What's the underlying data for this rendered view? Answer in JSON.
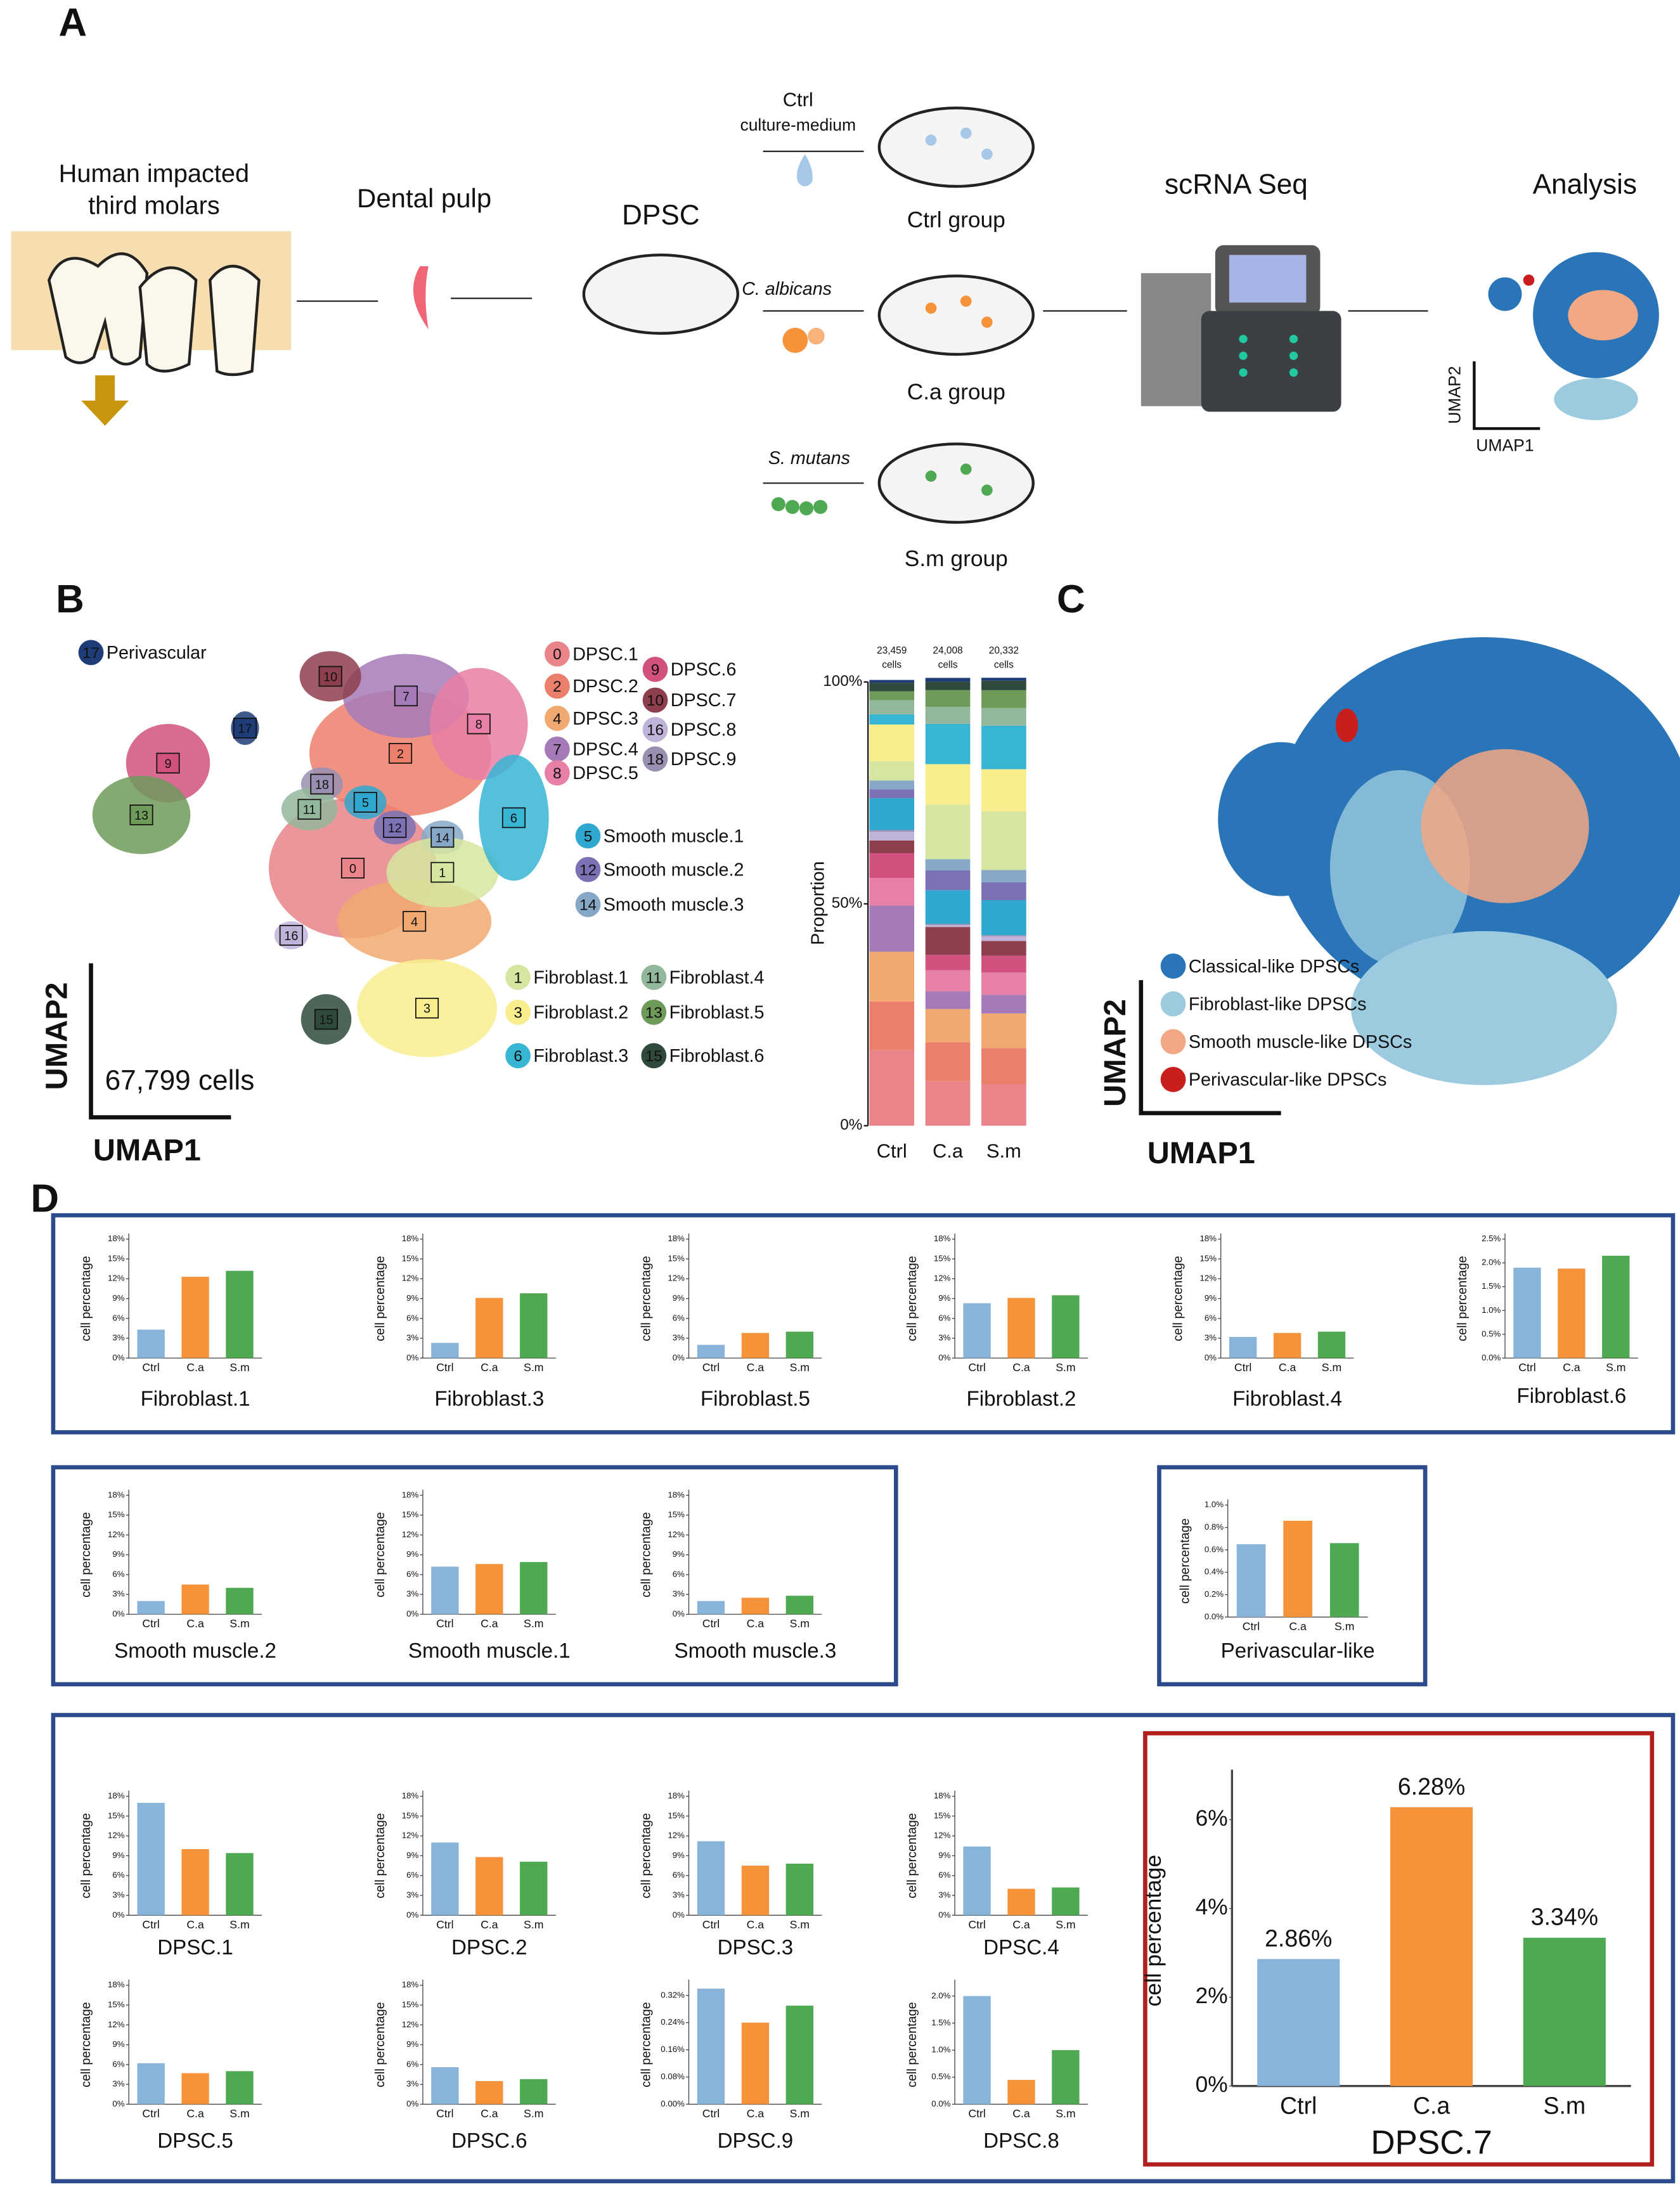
{
  "panel_a": {
    "label": "A",
    "source_line1": "Human impacted",
    "source_line2": "third molars",
    "pulp": "Dental pulp",
    "dpsc": "DPSC",
    "ctrl": "Ctrl",
    "ctrl_medium": "culture-medium",
    "ctrl_group": "Ctrl group",
    "ca": "C. albicans",
    "ca_group": "C.a group",
    "sm": "S. mutans",
    "sm_group": "S.m group",
    "seq": "scRNA Seq",
    "analysis": "Analysis",
    "umap2": "UMAP2",
    "umap1": "UMAP1"
  },
  "panel_b": {
    "label": "B",
    "umap2": "UMAP2",
    "umap1": "UMAP1",
    "cell_total": "67,799 cells",
    "clusters": [
      {
        "num": 0,
        "name": "DPSC.1",
        "color": "#e8848a"
      },
      {
        "num": 2,
        "name": "DPSC.2",
        "color": "#ec7f6b"
      },
      {
        "num": 4,
        "name": "DPSC.3",
        "color": "#f2a970"
      },
      {
        "num": 7,
        "name": "DPSC.4",
        "color": "#a47ab8"
      },
      {
        "num": 8,
        "name": "DPSC.5",
        "color": "#e77fa6"
      },
      {
        "num": 9,
        "name": "DPSC.6",
        "color": "#d1517f"
      },
      {
        "num": 10,
        "name": "DPSC.7",
        "color": "#8e3f4e"
      },
      {
        "num": 16,
        "name": "DPSC.8",
        "color": "#bfb3d9"
      },
      {
        "num": 18,
        "name": "DPSC.9",
        "color": "#9a8fb0"
      },
      {
        "num": 5,
        "name": "Smooth muscle.1",
        "color": "#2fa7cf"
      },
      {
        "num": 12,
        "name": "Smooth muscle.2",
        "color": "#7a72b5"
      },
      {
        "num": 14,
        "name": "Smooth muscle.3",
        "color": "#86a7c6"
      },
      {
        "num": 1,
        "name": "Fibroblast.1",
        "color": "#d6e6a0"
      },
      {
        "num": 3,
        "name": "Fibroblast.2",
        "color": "#f8ee8e"
      },
      {
        "num": 6,
        "name": "Fibroblast.3",
        "color": "#37b5d3"
      },
      {
        "num": 11,
        "name": "Fibroblast.4",
        "color": "#93b79a"
      },
      {
        "num": 13,
        "name": "Fibroblast.5",
        "color": "#6e9a5a"
      },
      {
        "num": 15,
        "name": "Fibroblast.6",
        "color": "#2f4a3c"
      },
      {
        "num": 17,
        "name": "Perivascular",
        "color": "#1e3d78"
      }
    ]
  },
  "panel_c": {
    "label": "C",
    "umap2": "UMAP2",
    "umap1": "UMAP1",
    "legend": [
      {
        "name": "Classical-like DPSCs",
        "color": "#2a74b8"
      },
      {
        "name": "Fibroblast-like DPSCs",
        "color": "#9ccbe0"
      },
      {
        "name": "Smooth muscle-like DPSCs",
        "color": "#f2a884"
      },
      {
        "name": "Perivascular-like DPSCs",
        "color": "#c81e1e"
      }
    ]
  },
  "panel_d": {
    "label": "D"
  },
  "stack": {
    "type": "stacked_bar",
    "y_label": "Proportion",
    "categories": [
      "Ctrl",
      "C.a",
      "S.m"
    ],
    "cell_counts": [
      "23,459",
      "24,008",
      "20,332"
    ],
    "count_unit": "cells",
    "ylim": [
      0,
      100
    ],
    "yticks": [
      {
        "value": 0,
        "label": "0%"
      },
      {
        "value": 50,
        "label": "50%"
      },
      {
        "value": 100,
        "label": "100%"
      }
    ]
  },
  "chart_data": [
    {
      "type": "bar",
      "title": "Fibroblast.1",
      "y_label": "cell percentage",
      "categories": [
        "Ctrl",
        "C.a",
        "S.m"
      ],
      "colors": [
        "#89b4d9",
        "#f6923a",
        "#4fa852"
      ],
      "values": [
        4.3,
        12.3,
        13.2
      ],
      "ylim": [
        0,
        18
      ],
      "yticks": [
        {
          "value": 0,
          "label": "0%"
        },
        {
          "value": 3,
          "label": "3%"
        },
        {
          "value": 6,
          "label": "6%"
        },
        {
          "value": 9,
          "label": "9%"
        },
        {
          "value": 12,
          "label": "12%"
        },
        {
          "value": 15,
          "label": "15%"
        },
        {
          "value": 18,
          "label": "18%"
        }
      ]
    },
    {
      "type": "bar",
      "title": "Fibroblast.3",
      "y_label": "cell percentage",
      "categories": [
        "Ctrl",
        "C.a",
        "S.m"
      ],
      "colors": [
        "#89b4d9",
        "#f6923a",
        "#4fa852"
      ],
      "values": [
        2.3,
        9.1,
        9.8
      ],
      "ylim": [
        0,
        18
      ],
      "yticks": [
        {
          "value": 0,
          "label": "0%"
        },
        {
          "value": 3,
          "label": "3%"
        },
        {
          "value": 6,
          "label": "6%"
        },
        {
          "value": 9,
          "label": "9%"
        },
        {
          "value": 12,
          "label": "12%"
        },
        {
          "value": 15,
          "label": "15%"
        },
        {
          "value": 18,
          "label": "18%"
        }
      ]
    },
    {
      "type": "bar",
      "title": "Fibroblast.5",
      "y_label": "cell percentage",
      "categories": [
        "Ctrl",
        "C.a",
        "S.m"
      ],
      "colors": [
        "#89b4d9",
        "#f6923a",
        "#4fa852"
      ],
      "values": [
        2.0,
        3.8,
        4.0
      ],
      "ylim": [
        0,
        18
      ],
      "yticks": [
        {
          "value": 0,
          "label": "0%"
        },
        {
          "value": 3,
          "label": "3%"
        },
        {
          "value": 6,
          "label": "6%"
        },
        {
          "value": 9,
          "label": "9%"
        },
        {
          "value": 12,
          "label": "12%"
        },
        {
          "value": 15,
          "label": "15%"
        },
        {
          "value": 18,
          "label": "18%"
        }
      ]
    },
    {
      "type": "bar",
      "title": "Fibroblast.2",
      "y_label": "cell percentage",
      "categories": [
        "Ctrl",
        "C.a",
        "S.m"
      ],
      "colors": [
        "#89b4d9",
        "#f6923a",
        "#4fa852"
      ],
      "values": [
        8.3,
        9.1,
        9.5
      ],
      "ylim": [
        0,
        18
      ],
      "yticks": [
        {
          "value": 0,
          "label": "0%"
        },
        {
          "value": 3,
          "label": "3%"
        },
        {
          "value": 6,
          "label": "6%"
        },
        {
          "value": 9,
          "label": "9%"
        },
        {
          "value": 12,
          "label": "12%"
        },
        {
          "value": 15,
          "label": "15%"
        },
        {
          "value": 18,
          "label": "18%"
        }
      ]
    },
    {
      "type": "bar",
      "title": "Fibroblast.4",
      "y_label": "cell percentage",
      "categories": [
        "Ctrl",
        "C.a",
        "S.m"
      ],
      "colors": [
        "#89b4d9",
        "#f6923a",
        "#4fa852"
      ],
      "values": [
        3.2,
        3.8,
        4.0
      ],
      "ylim": [
        0,
        18
      ],
      "yticks": [
        {
          "value": 0,
          "label": "0%"
        },
        {
          "value": 3,
          "label": "3%"
        },
        {
          "value": 6,
          "label": "6%"
        },
        {
          "value": 9,
          "label": "9%"
        },
        {
          "value": 12,
          "label": "12%"
        },
        {
          "value": 15,
          "label": "15%"
        },
        {
          "value": 18,
          "label": "18%"
        }
      ]
    },
    {
      "type": "bar",
      "title": "Fibroblast.6",
      "y_label": "cell percentage",
      "categories": [
        "Ctrl",
        "C.a",
        "S.m"
      ],
      "colors": [
        "#89b4d9",
        "#f6923a",
        "#4fa852"
      ],
      "values": [
        1.9,
        1.88,
        2.15
      ],
      "ylim": [
        0,
        2.5
      ],
      "yticks": [
        {
          "value": 0,
          "label": "0.0%"
        },
        {
          "value": 0.5,
          "label": "0.5%"
        },
        {
          "value": 1,
          "label": "1.0%"
        },
        {
          "value": 1.5,
          "label": "1.5%"
        },
        {
          "value": 2,
          "label": "2.0%"
        },
        {
          "value": 2.5,
          "label": "2.5%"
        }
      ]
    },
    {
      "type": "bar",
      "title": "Smooth muscle.2",
      "y_label": "cell percentage",
      "categories": [
        "Ctrl",
        "C.a",
        "S.m"
      ],
      "colors": [
        "#89b4d9",
        "#f6923a",
        "#4fa852"
      ],
      "values": [
        2.0,
        4.5,
        4.0
      ],
      "ylim": [
        0,
        18
      ],
      "yticks": [
        {
          "value": 0,
          "label": "0%"
        },
        {
          "value": 3,
          "label": "3%"
        },
        {
          "value": 6,
          "label": "6%"
        },
        {
          "value": 9,
          "label": "9%"
        },
        {
          "value": 12,
          "label": "12%"
        },
        {
          "value": 15,
          "label": "15%"
        },
        {
          "value": 18,
          "label": "18%"
        }
      ]
    },
    {
      "type": "bar",
      "title": "Smooth muscle.1",
      "y_label": "cell percentage",
      "categories": [
        "Ctrl",
        "C.a",
        "S.m"
      ],
      "colors": [
        "#89b4d9",
        "#f6923a",
        "#4fa852"
      ],
      "values": [
        7.2,
        7.6,
        7.9
      ],
      "ylim": [
        0,
        18
      ],
      "yticks": [
        {
          "value": 0,
          "label": "0%"
        },
        {
          "value": 3,
          "label": "3%"
        },
        {
          "value": 6,
          "label": "6%"
        },
        {
          "value": 9,
          "label": "9%"
        },
        {
          "value": 12,
          "label": "12%"
        },
        {
          "value": 15,
          "label": "15%"
        },
        {
          "value": 18,
          "label": "18%"
        }
      ]
    },
    {
      "type": "bar",
      "title": "Smooth muscle.3",
      "y_label": "cell percentage",
      "categories": [
        "Ctrl",
        "C.a",
        "S.m"
      ],
      "colors": [
        "#89b4d9",
        "#f6923a",
        "#4fa852"
      ],
      "values": [
        2.0,
        2.5,
        2.8
      ],
      "ylim": [
        0,
        18
      ],
      "yticks": [
        {
          "value": 0,
          "label": "0%"
        },
        {
          "value": 3,
          "label": "3%"
        },
        {
          "value": 6,
          "label": "6%"
        },
        {
          "value": 9,
          "label": "9%"
        },
        {
          "value": 12,
          "label": "12%"
        },
        {
          "value": 15,
          "label": "15%"
        },
        {
          "value": 18,
          "label": "18%"
        }
      ]
    },
    {
      "type": "bar",
      "title": "Perivascular-like",
      "y_label": "cell percentage",
      "categories": [
        "Ctrl",
        "C.a",
        "S.m"
      ],
      "colors": [
        "#89b4d9",
        "#f6923a",
        "#4fa852"
      ],
      "values": [
        0.65,
        0.86,
        0.66
      ],
      "ylim": [
        0,
        1
      ],
      "yticks": [
        {
          "value": 0,
          "label": "0.0%"
        },
        {
          "value": 0.2,
          "label": "0.2%"
        },
        {
          "value": 0.4,
          "label": "0.4%"
        },
        {
          "value": 0.6,
          "label": "0.6%"
        },
        {
          "value": 0.8,
          "label": "0.8%"
        },
        {
          "value": 1,
          "label": "1.0%"
        }
      ]
    },
    {
      "type": "bar",
      "title": "DPSC.1",
      "y_label": "cell percentage",
      "categories": [
        "Ctrl",
        "C.a",
        "S.m"
      ],
      "colors": [
        "#89b4d9",
        "#f6923a",
        "#4fa852"
      ],
      "values": [
        17,
        10,
        9.4
      ],
      "ylim": [
        0,
        18
      ],
      "yticks": [
        {
          "value": 0,
          "label": "0%"
        },
        {
          "value": 3,
          "label": "3%"
        },
        {
          "value": 6,
          "label": "6%"
        },
        {
          "value": 9,
          "label": "9%"
        },
        {
          "value": 12,
          "label": "12%"
        },
        {
          "value": 15,
          "label": "15%"
        },
        {
          "value": 18,
          "label": "18%"
        }
      ]
    },
    {
      "type": "bar",
      "title": "DPSC.2",
      "y_label": "cell percentage",
      "categories": [
        "Ctrl",
        "C.a",
        "S.m"
      ],
      "colors": [
        "#89b4d9",
        "#f6923a",
        "#4fa852"
      ],
      "values": [
        11,
        8.8,
        8.1
      ],
      "ylim": [
        0,
        18
      ],
      "yticks": [
        {
          "value": 0,
          "label": "0%"
        },
        {
          "value": 3,
          "label": "3%"
        },
        {
          "value": 6,
          "label": "6%"
        },
        {
          "value": 9,
          "label": "9%"
        },
        {
          "value": 12,
          "label": "12%"
        },
        {
          "value": 15,
          "label": "15%"
        },
        {
          "value": 18,
          "label": "18%"
        }
      ]
    },
    {
      "type": "bar",
      "title": "DPSC.3",
      "y_label": "cell percentage",
      "categories": [
        "Ctrl",
        "C.a",
        "S.m"
      ],
      "colors": [
        "#89b4d9",
        "#f6923a",
        "#4fa852"
      ],
      "values": [
        11.2,
        7.5,
        7.8
      ],
      "ylim": [
        0,
        18
      ],
      "yticks": [
        {
          "value": 0,
          "label": "0%"
        },
        {
          "value": 3,
          "label": "3%"
        },
        {
          "value": 6,
          "label": "6%"
        },
        {
          "value": 9,
          "label": "9%"
        },
        {
          "value": 12,
          "label": "12%"
        },
        {
          "value": 15,
          "label": "15%"
        },
        {
          "value": 18,
          "label": "18%"
        }
      ]
    },
    {
      "type": "bar",
      "title": "DPSC.4",
      "y_label": "cell percentage",
      "categories": [
        "Ctrl",
        "C.a",
        "S.m"
      ],
      "colors": [
        "#89b4d9",
        "#f6923a",
        "#4fa852"
      ],
      "values": [
        10.4,
        4.0,
        4.2
      ],
      "ylim": [
        0,
        18
      ],
      "yticks": [
        {
          "value": 0,
          "label": "0%"
        },
        {
          "value": 3,
          "label": "3%"
        },
        {
          "value": 6,
          "label": "6%"
        },
        {
          "value": 9,
          "label": "9%"
        },
        {
          "value": 12,
          "label": "12%"
        },
        {
          "value": 15,
          "label": "15%"
        },
        {
          "value": 18,
          "label": "18%"
        }
      ]
    },
    {
      "type": "bar",
      "title": "DPSC.5",
      "y_label": "cell percentage",
      "categories": [
        "Ctrl",
        "C.a",
        "S.m"
      ],
      "colors": [
        "#89b4d9",
        "#f6923a",
        "#4fa852"
      ],
      "values": [
        6.2,
        4.7,
        5.0
      ],
      "ylim": [
        0,
        18
      ],
      "yticks": [
        {
          "value": 0,
          "label": "0%"
        },
        {
          "value": 3,
          "label": "3%"
        },
        {
          "value": 6,
          "label": "6%"
        },
        {
          "value": 9,
          "label": "9%"
        },
        {
          "value": 12,
          "label": "12%"
        },
        {
          "value": 15,
          "label": "15%"
        },
        {
          "value": 18,
          "label": "18%"
        }
      ]
    },
    {
      "type": "bar",
      "title": "DPSC.6",
      "y_label": "cell percentage",
      "categories": [
        "Ctrl",
        "C.a",
        "S.m"
      ],
      "colors": [
        "#89b4d9",
        "#f6923a",
        "#4fa852"
      ],
      "values": [
        5.6,
        3.5,
        3.8
      ],
      "ylim": [
        0,
        18
      ],
      "yticks": [
        {
          "value": 0,
          "label": "0%"
        },
        {
          "value": 3,
          "label": "3%"
        },
        {
          "value": 6,
          "label": "6%"
        },
        {
          "value": 9,
          "label": "9%"
        },
        {
          "value": 12,
          "label": "12%"
        },
        {
          "value": 15,
          "label": "15%"
        },
        {
          "value": 18,
          "label": "18%"
        }
      ]
    },
    {
      "type": "bar",
      "title": "DPSC.9",
      "y_label": "cell percentage",
      "categories": [
        "Ctrl",
        "C.a",
        "S.m"
      ],
      "colors": [
        "#89b4d9",
        "#f6923a",
        "#4fa852"
      ],
      "values": [
        0.34,
        0.24,
        0.29
      ],
      "ylim": [
        0,
        0.35
      ],
      "yticks": [
        {
          "value": 0,
          "label": "0.00%"
        },
        {
          "value": 0.08,
          "label": "0.08%"
        },
        {
          "value": 0.16,
          "label": "0.16%"
        },
        {
          "value": 0.24,
          "label": "0.24%"
        },
        {
          "value": 0.32,
          "label": "0.32%"
        }
      ]
    },
    {
      "type": "bar",
      "title": "DPSC.8",
      "y_label": "cell percentage",
      "categories": [
        "Ctrl",
        "C.a",
        "S.m"
      ],
      "colors": [
        "#89b4d9",
        "#f6923a",
        "#4fa852"
      ],
      "values": [
        2.0,
        0.45,
        1.0
      ],
      "ylim": [
        0,
        2.2
      ],
      "yticks": [
        {
          "value": 0,
          "label": "0.0%"
        },
        {
          "value": 0.5,
          "label": "0.5%"
        },
        {
          "value": 1,
          "label": "1.0%"
        },
        {
          "value": 1.5,
          "label": "1.5%"
        },
        {
          "value": 2,
          "label": "2.0%"
        }
      ]
    },
    {
      "type": "bar",
      "title": "DPSC.7",
      "y_label": "cell percentage",
      "categories": [
        "Ctrl",
        "C.a",
        "S.m"
      ],
      "colors": [
        "#89b4d9",
        "#f6923a",
        "#4fa852"
      ],
      "values": [
        2.86,
        6.28,
        3.34
      ],
      "value_labels": [
        "2.86%",
        "6.28%",
        "3.34%"
      ],
      "ylim": [
        0,
        7
      ],
      "yticks": [
        {
          "value": 0,
          "label": "0%"
        },
        {
          "value": 2,
          "label": "2%"
        },
        {
          "value": 4,
          "label": "4%"
        },
        {
          "value": 6,
          "label": "6%"
        }
      ]
    }
  ]
}
